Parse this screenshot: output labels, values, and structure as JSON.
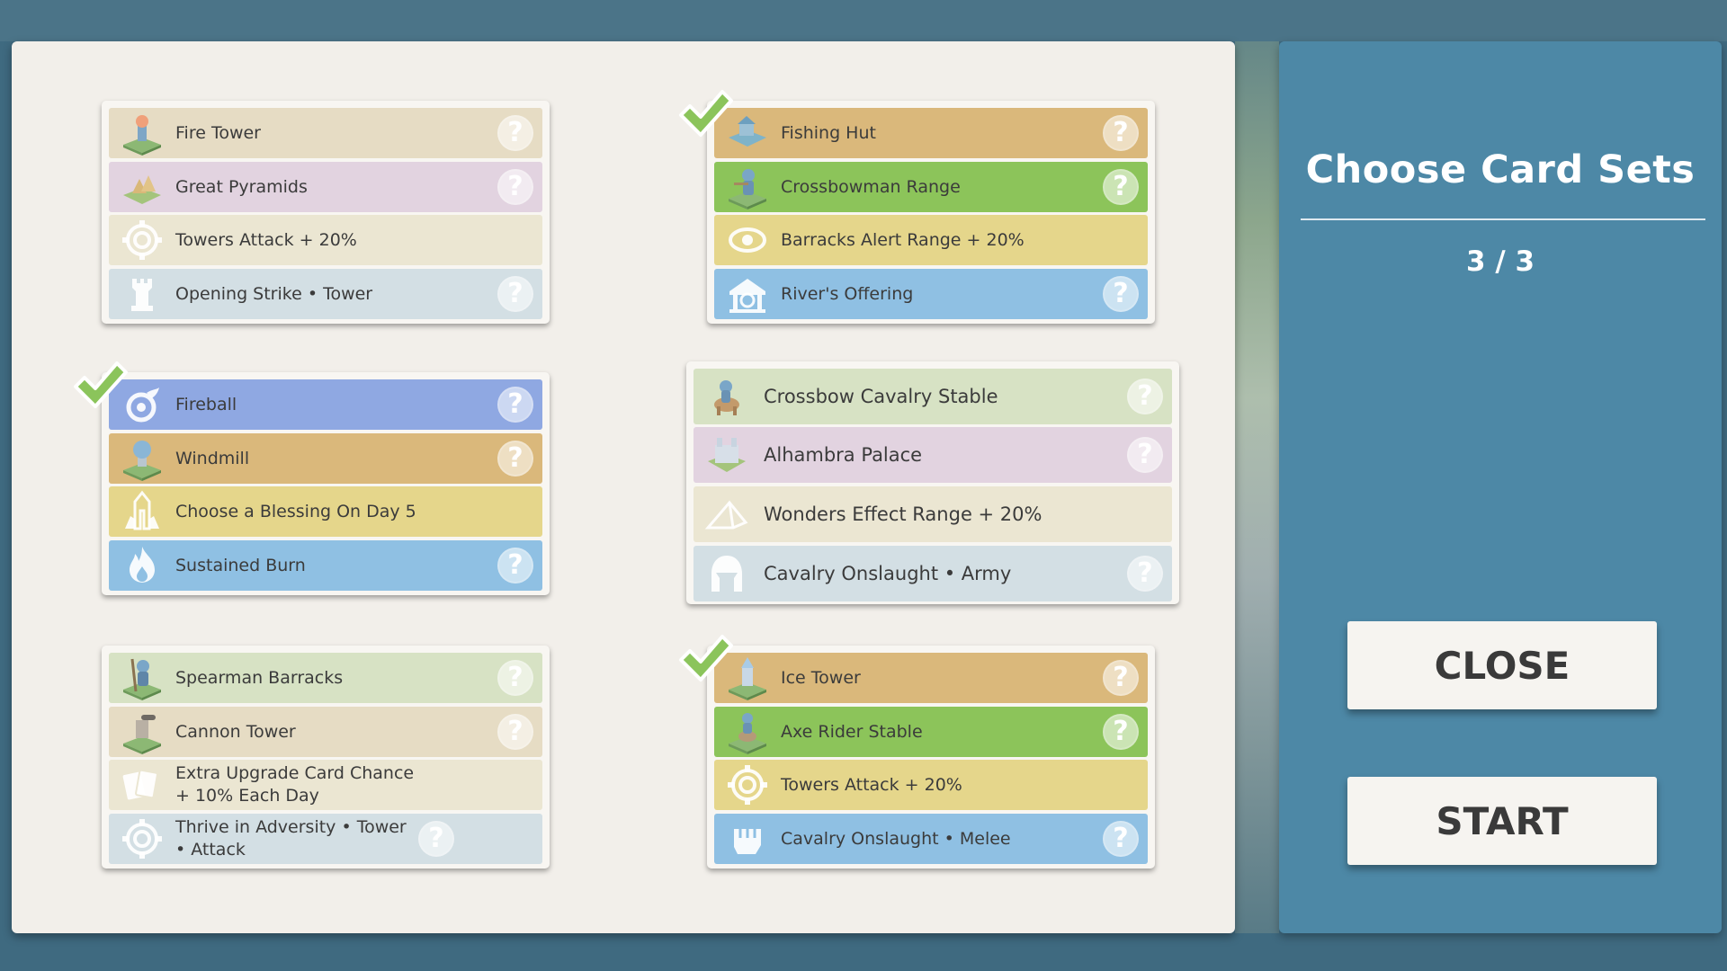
{
  "panel": {
    "title": "Choose Card Sets",
    "count": "3 / 3",
    "close_label": "CLOSE",
    "start_label": "START"
  },
  "colors": {
    "sand": "#e6dcc4",
    "lilac": "#e2d3e0",
    "cream": "#ebe6d2",
    "pale_blue": "#d3dfe4",
    "periwinkle": "#8fa8e2",
    "ochre": "#dab87b",
    "yellow": "#e5d68b",
    "sky": "#8fc0e3",
    "green": "#8cc45a",
    "sage": "#d7e2c4",
    "check_green": "#8bc45b"
  },
  "card_sets": [
    {
      "selected": false,
      "rows": [
        {
          "label": "Fire Tower",
          "icon": "fire-tower-icon",
          "color": "#e6dcc4",
          "help": true
        },
        {
          "label": "Great Pyramids",
          "icon": "pyramids-icon",
          "color": "#e2d3e0",
          "help": true
        },
        {
          "label": "Towers Attack + 20%",
          "icon": "gear-icon",
          "color": "#ebe6d2",
          "help": false
        },
        {
          "label": "Opening Strike  •  Tower",
          "icon": "tower-icon",
          "color": "#d3dfe4",
          "help": true
        }
      ]
    },
    {
      "selected": true,
      "rows": [
        {
          "label": "Fishing Hut",
          "icon": "fishing-hut-icon",
          "color": "#dab87b",
          "help": true
        },
        {
          "label": "Crossbowman Range",
          "icon": "crossbowman-icon",
          "color": "#8cc45a",
          "help": true
        },
        {
          "label": "Barracks Alert Range + 20%",
          "icon": "eye-icon",
          "color": "#e5d68b",
          "help": false
        },
        {
          "label": "River's Offering",
          "icon": "temple-icon",
          "color": "#8fc0e3",
          "help": true
        }
      ]
    },
    {
      "selected": true,
      "rows": [
        {
          "label": "Fireball",
          "icon": "fireball-icon",
          "color": "#8fa8e2",
          "help": true
        },
        {
          "label": "Windmill",
          "icon": "windmill-icon",
          "color": "#dab87b",
          "help": true
        },
        {
          "label": "Choose a Blessing On Day 5",
          "icon": "blessing-icon",
          "color": "#e5d68b",
          "help": false
        },
        {
          "label": "Sustained Burn",
          "icon": "flame-icon",
          "color": "#8fc0e3",
          "help": true
        }
      ]
    },
    {
      "selected": false,
      "rows": [
        {
          "label": "Crossbow Cavalry Stable",
          "icon": "cavalry-icon",
          "color": "#d7e2c4",
          "help": true
        },
        {
          "label": "Alhambra Palace",
          "icon": "palace-icon",
          "color": "#e2d3e0",
          "help": true
        },
        {
          "label": "Wonders Effect Range + 20%",
          "icon": "pyramid-outline-icon",
          "color": "#ebe6d2",
          "help": false
        },
        {
          "label": "Cavalry Onslaught  •  Army",
          "icon": "helmet-icon",
          "color": "#d3dfe4",
          "help": true
        }
      ]
    },
    {
      "selected": false,
      "rows": [
        {
          "label": "Spearman Barracks",
          "icon": "spearman-icon",
          "color": "#d7e2c4",
          "help": true
        },
        {
          "label": "Cannon Tower",
          "icon": "cannon-tower-icon",
          "color": "#e6dcc4",
          "help": true
        },
        {
          "label": "Extra Upgrade Card Chance + 10% Each Day",
          "icon": "cards-icon",
          "color": "#ebe6d2",
          "help": false
        },
        {
          "label": "Thrive in Adversity  •  Tower  •  Attack",
          "icon": "gear-icon",
          "color": "#d3dfe4",
          "help": true
        }
      ]
    },
    {
      "selected": true,
      "rows": [
        {
          "label": "Ice Tower",
          "icon": "ice-tower-icon",
          "color": "#dab87b",
          "help": true
        },
        {
          "label": "Axe Rider Stable",
          "icon": "axe-rider-icon",
          "color": "#8cc45a",
          "help": true
        },
        {
          "label": "Towers Attack + 20%",
          "icon": "gear-icon",
          "color": "#e5d68b",
          "help": false
        },
        {
          "label": "Cavalry Onslaught  •  Melee",
          "icon": "fist-icon",
          "color": "#8fc0e3",
          "help": true
        }
      ]
    }
  ]
}
